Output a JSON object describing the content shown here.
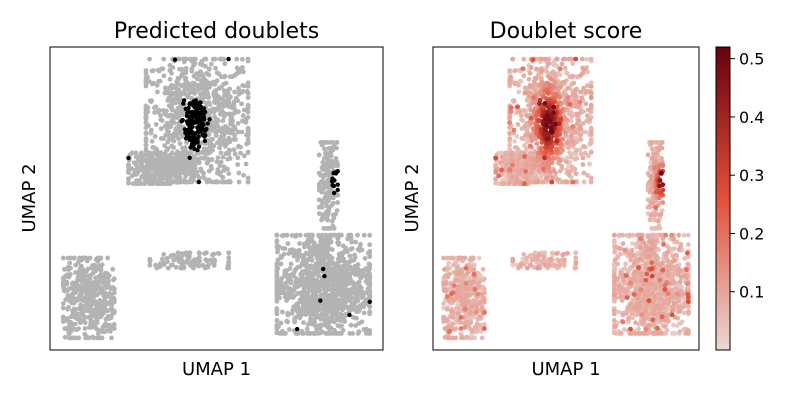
{
  "chart_data": [
    {
      "type": "scatter",
      "title": "Predicted doublets",
      "xlabel": "UMAP 1",
      "ylabel": "UMAP 2",
      "ticks": "none",
      "series": [
        {
          "name": "",
          "color": "#b3b3b3",
          "role": "singlet"
        },
        {
          "name": "",
          "color": "#000000",
          "role": "doublet"
        }
      ]
    },
    {
      "type": "scatter",
      "title": "Doublet score",
      "xlabel": "UMAP 1",
      "ylabel": "UMAP 2",
      "ticks": "none",
      "colormap": "Reds",
      "colorbar": {
        "range": [
          0.0,
          0.52
        ],
        "ticks": [
          0.1,
          0.2,
          0.3,
          0.4,
          0.5
        ],
        "tick_labels": [
          "0.1",
          "0.2",
          "0.3",
          "0.4",
          "0.5"
        ],
        "color_low": "#e8d9d5",
        "color_mid": "#e3503a",
        "color_high": "#67000d"
      }
    }
  ],
  "clusters": [
    {
      "id": "top-left",
      "cx": 0.0,
      "cy": 3.6,
      "sx": 2.2,
      "sy": 2.0,
      "n": 900
    },
    {
      "id": "left-arm",
      "cx": -1.4,
      "cy": 2.2,
      "sx": 1.4,
      "sy": 0.5,
      "n": 350
    },
    {
      "id": "right-tall",
      "cx": 5.1,
      "cy": 1.7,
      "sx": 0.4,
      "sy": 1.4,
      "n": 170
    },
    {
      "id": "right-bottom",
      "cx": 4.9,
      "cy": -1.2,
      "sx": 2.0,
      "sy": 1.6,
      "n": 1100
    },
    {
      "id": "bottom-left",
      "cx": -4.2,
      "cy": -1.6,
      "sx": 1.1,
      "sy": 1.3,
      "n": 450
    },
    {
      "id": "middle-strip",
      "cx": -0.3,
      "cy": -0.5,
      "sx": 1.7,
      "sy": 0.25,
      "n": 110
    }
  ],
  "doublet_hotspots": [
    {
      "id": "top-left-core",
      "cx": -0.1,
      "cy": 3.5,
      "sx": 0.5,
      "sy": 0.8
    },
    {
      "id": "right-tall-edge",
      "cx": 5.4,
      "cy": 1.8,
      "sx": 0.2,
      "sy": 0.4
    }
  ]
}
